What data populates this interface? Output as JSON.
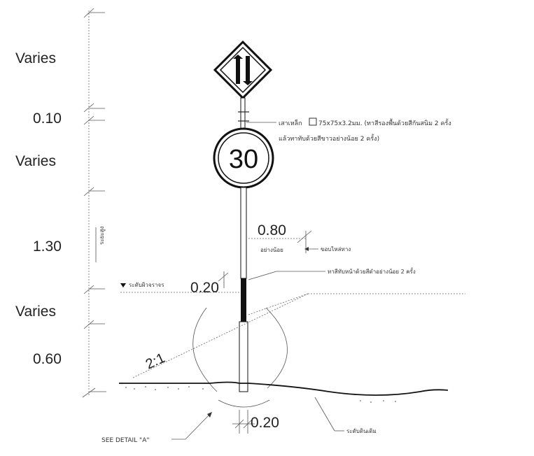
{
  "dimensions": {
    "d1": "Varies",
    "d2": "0.10",
    "d3": "Varies",
    "d4": "1.30",
    "d5": "Varies",
    "d6": "0.60",
    "offset": "0.80",
    "post_width": "0.20",
    "footing": "0.20",
    "slope": "2:1"
  },
  "sign": {
    "speed": "30"
  },
  "notes": {
    "post_line1": "เสาเหล็ก",
    "post_spec": "75x75x3.2มม. (ทาสีรองพื้นด้วยสีกันสนิม 2 ครั้ง",
    "post_line2": "แล้วทาทับด้วยสีขาวอย่างน้อย 2 ครั้ง)",
    "min_label": "อย่างน้อย",
    "road_edge": "ขอบไหล่ทาง",
    "paint_black": "ทาสีทับหน้าด้วยสีดำอย่างน้อย 2 ครั้ง",
    "road_level": "ระดับผิวจราจร",
    "vertical_label": "ระยะสูง",
    "detail_ref": "SEE DETAIL \"A\"",
    "ground": "ระดับดินเดิม"
  }
}
